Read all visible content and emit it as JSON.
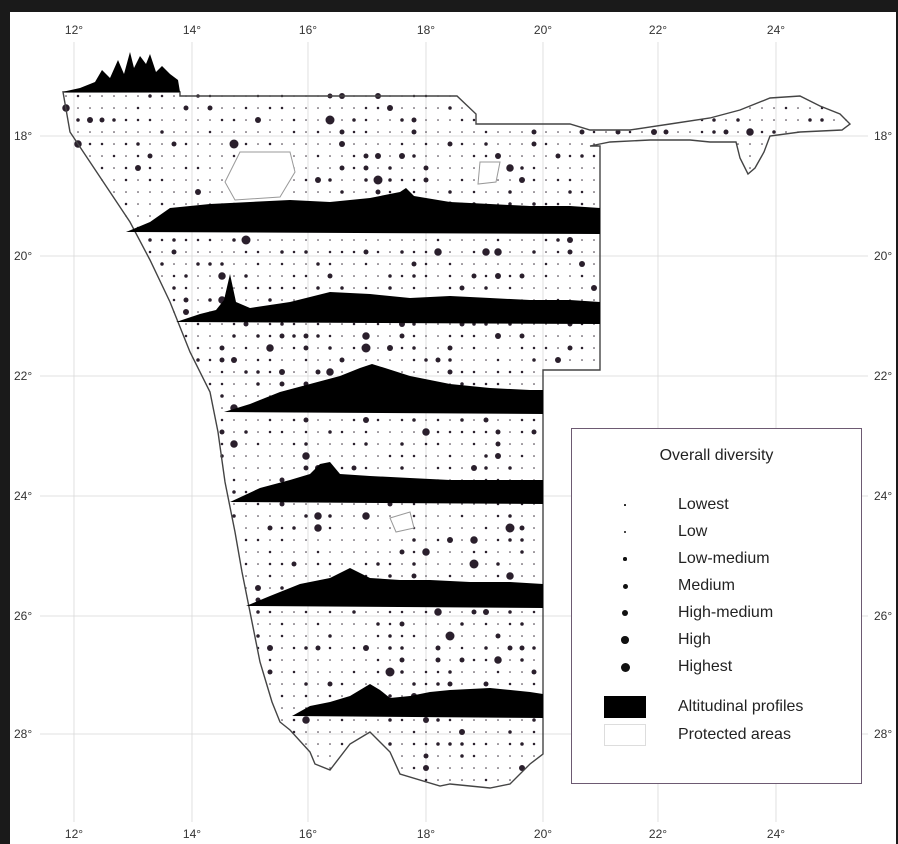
{
  "map": {
    "lon_ticks": [
      "12°",
      "14°",
      "16°",
      "18°",
      "20°",
      "22°",
      "24°"
    ],
    "lat_ticks": [
      "18°",
      "20°",
      "22°",
      "24°",
      "26°",
      "28°"
    ]
  },
  "legend": {
    "title": "Overall diversity",
    "levels": [
      {
        "label": "Lowest",
        "size": 1.5
      },
      {
        "label": "Low",
        "size": 2.5
      },
      {
        "label": "Low-medium",
        "size": 3.5
      },
      {
        "label": "Medium",
        "size": 5
      },
      {
        "label": "High-medium",
        "size": 6
      },
      {
        "label": "High",
        "size": 7.5
      },
      {
        "label": "Highest",
        "size": 9
      }
    ],
    "altitudinal_label": "Altitudinal profiles",
    "protected_label": "Protected areas"
  }
}
